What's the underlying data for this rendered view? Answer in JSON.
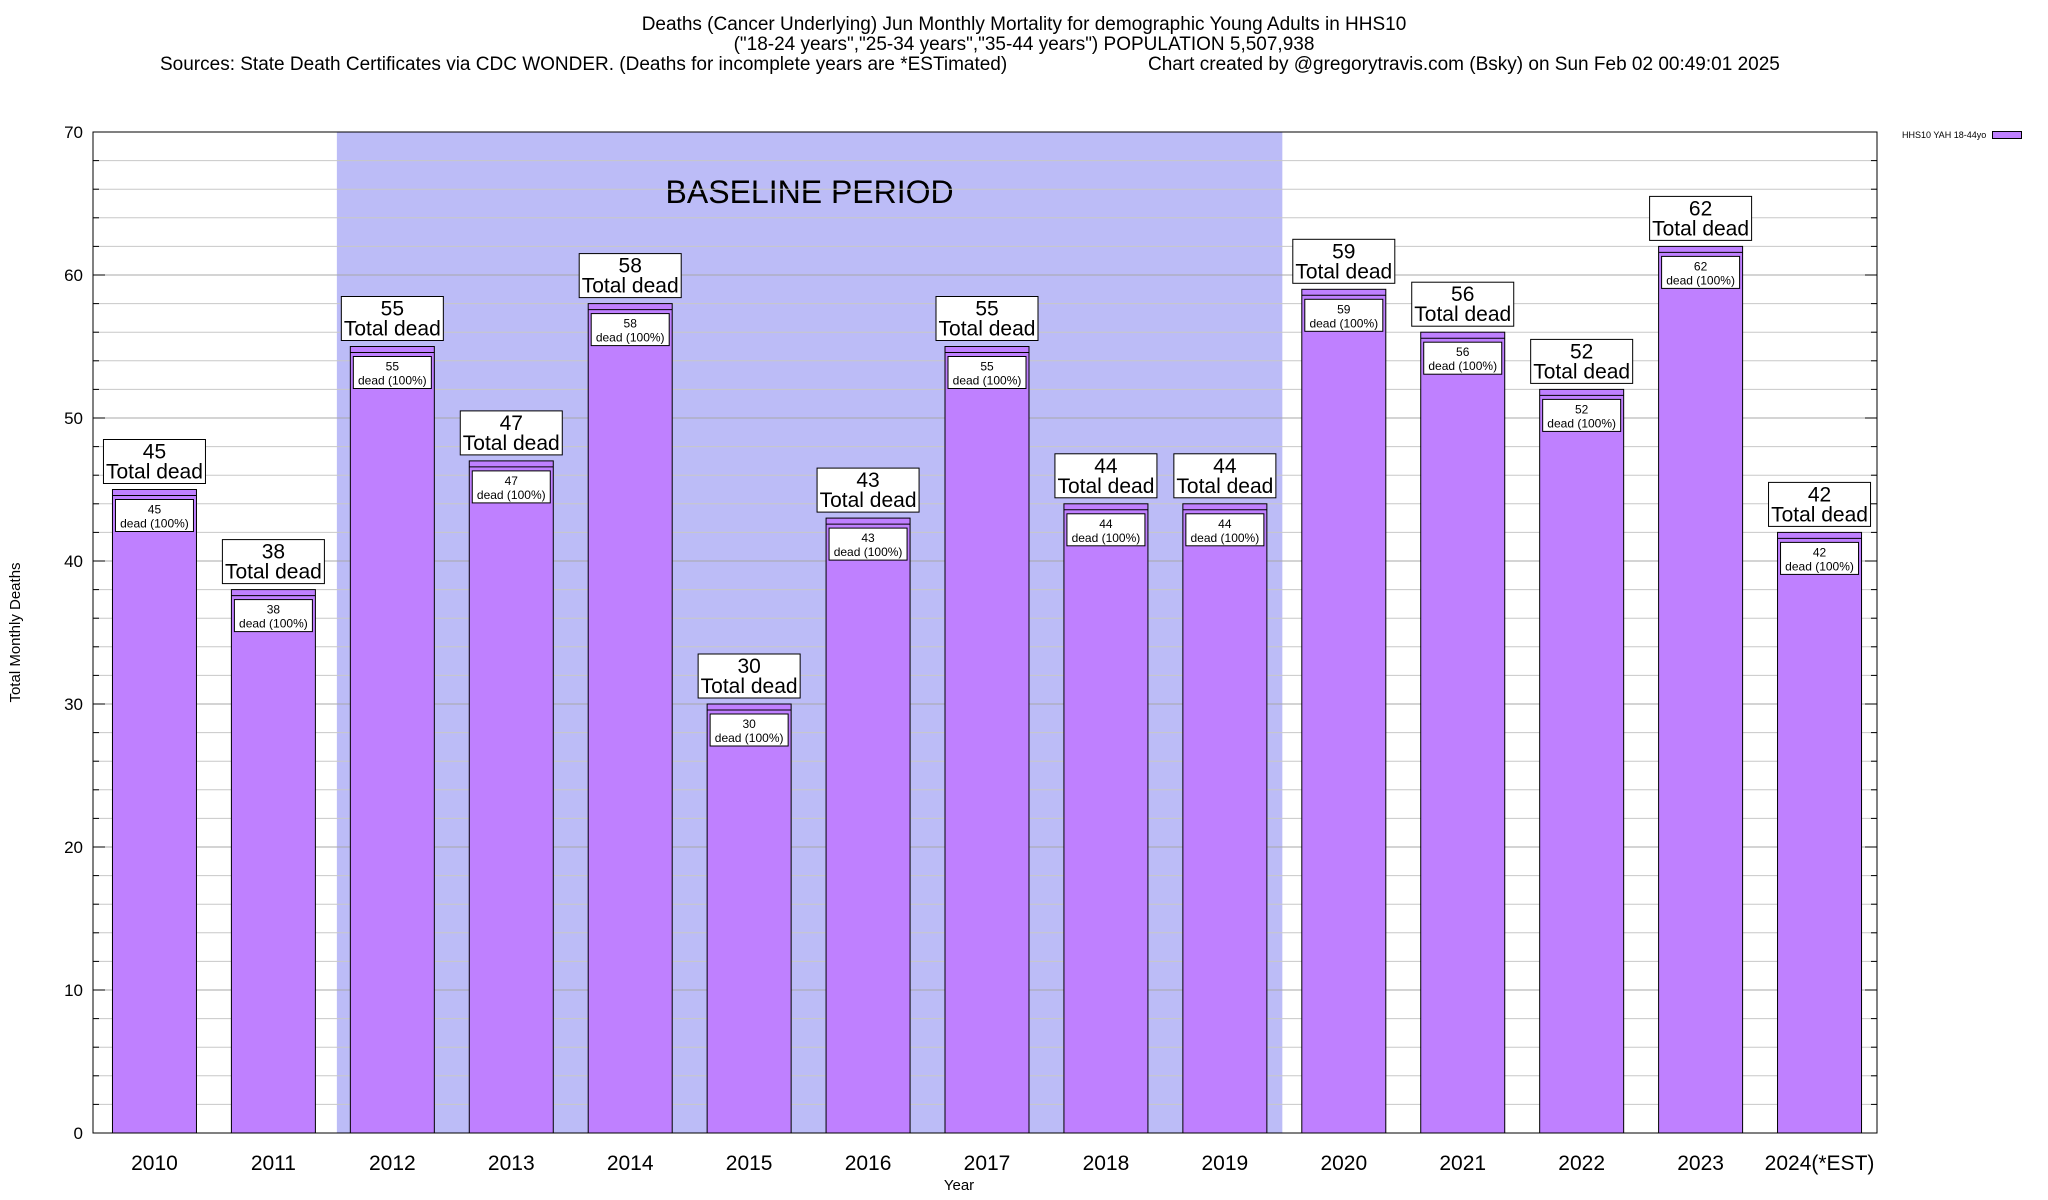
{
  "chart_data": {
    "type": "bar",
    "title_lines": [
      "Deaths (Cancer Underlying) Jun Monthly Mortality for demographic Young Adults in HHS10",
      "(\"18-24 years\",\"25-34 years\",\"35-44 years\") POPULATION 5,507,938"
    ],
    "sources_text": "Sources: State Death Certificates via CDC WONDER. (Deaths for incomplete years are *ESTimated)",
    "credit_text": "Chart created by @gregorytravis.com (Bsky) on Sun Feb 02 00:49:01 2025",
    "xlabel": "Year",
    "ylabel": "Total Monthly Deaths",
    "ylim": [
      0,
      70
    ],
    "yticks": [
      "0",
      "10",
      "20",
      "30",
      "40",
      "50",
      "60",
      "70"
    ],
    "grid": true,
    "categories": [
      "2010",
      "2011",
      "2012",
      "2013",
      "2014",
      "2015",
      "2016",
      "2017",
      "2018",
      "2019",
      "2020",
      "2021",
      "2022",
      "2023",
      "2024(*EST)"
    ],
    "series": [
      {
        "name": "HHS10 YAH 18-44yo",
        "color": "#bf80ff",
        "values": [
          45,
          38,
          55,
          47,
          58,
          30,
          43,
          55,
          44,
          44,
          59,
          56,
          52,
          62,
          42
        ]
      }
    ],
    "top_label_suffix": "Total dead",
    "inner_label_suffix": "dead (100%)",
    "baseline_period": {
      "label": "BASELINE PERIOD",
      "from": "2012",
      "to": "2019",
      "color": "#bcbcf7"
    },
    "legend_position": "top-right"
  }
}
